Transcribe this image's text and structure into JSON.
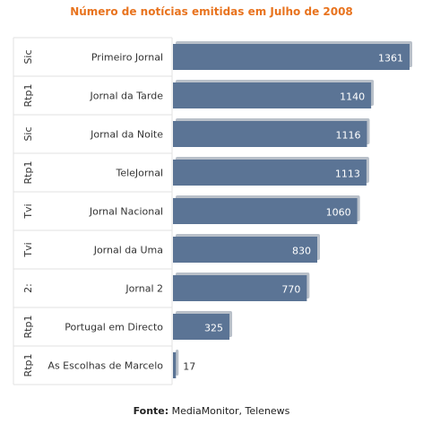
{
  "colors": {
    "title": "#e8731e",
    "bar": "#5b7495",
    "bar_shadow": "#b9c0c9",
    "grid": "#e2e2e2"
  },
  "chart_data": {
    "type": "bar",
    "orientation": "horizontal",
    "title": "Número de notícias emitidas em Julho de 2008",
    "categories": [
      "Primeiro Jornal",
      "Jornal da Tarde",
      "Jornal da Noite",
      "TeleJornal",
      "Jornal Nacional",
      "Jornal da Uma",
      "Jornal 2",
      "Portugal em Directo",
      "As Escolhas de Marcelo"
    ],
    "groups": [
      "Sic",
      "Rtp1",
      "Sic",
      "Rtp1",
      "Tvi",
      "Tvi",
      "2:",
      "Rtp1",
      "Rtp1"
    ],
    "values": [
      1361,
      1140,
      1116,
      1113,
      1060,
      830,
      770,
      325,
      17
    ],
    "xlim": [
      0,
      1361
    ],
    "grid": true,
    "legend": "none"
  },
  "source": {
    "label": "Fonte:",
    "text": "MediaMonitor, Telenews"
  }
}
